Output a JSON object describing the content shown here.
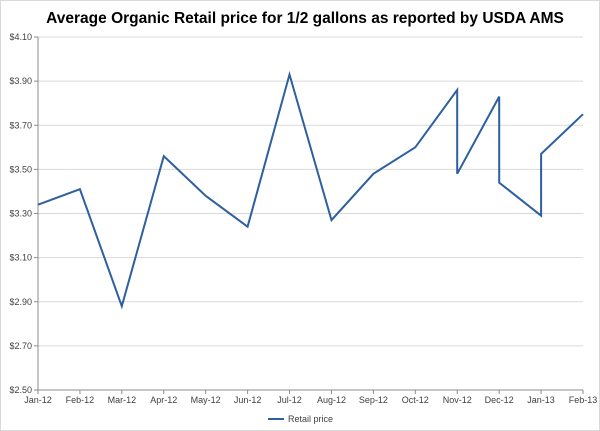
{
  "chart_data": {
    "type": "line",
    "title": "Average Organic Retail price for 1/2 gallons as reported by USDA AMS",
    "xlabel": "",
    "ylabel": "",
    "x_tick_labels": [
      "Jan-12",
      "Feb-12",
      "Mar-12",
      "Apr-12",
      "May-12",
      "Jun-12",
      "Jul-12",
      "Aug-12",
      "Sep-12",
      "Oct-12",
      "Nov-12",
      "Dec-12",
      "Jan-13",
      "Feb-13"
    ],
    "y_tick_labels": [
      "$2.50",
      "$2.70",
      "$2.90",
      "$3.10",
      "$3.30",
      "$3.50",
      "$3.70",
      "$3.90",
      "$4.10"
    ],
    "ylim": [
      2.5,
      4.1
    ],
    "y_ticks": [
      2.5,
      2.7,
      2.9,
      3.1,
      3.3,
      3.5,
      3.7,
      3.9,
      4.1
    ],
    "grid": "horizontal",
    "legend_position": "bottom",
    "series": [
      {
        "name": "Retail price",
        "color": "#2e5f9e",
        "x": [
          0,
          1,
          2,
          3,
          4,
          5,
          6,
          7,
          8,
          9,
          10,
          10,
          11,
          11,
          12,
          12,
          13
        ],
        "y": [
          3.34,
          3.41,
          2.88,
          3.56,
          3.38,
          3.24,
          3.93,
          3.27,
          3.48,
          3.6,
          3.86,
          3.48,
          3.83,
          3.44,
          3.29,
          3.57,
          3.75
        ]
      }
    ]
  }
}
